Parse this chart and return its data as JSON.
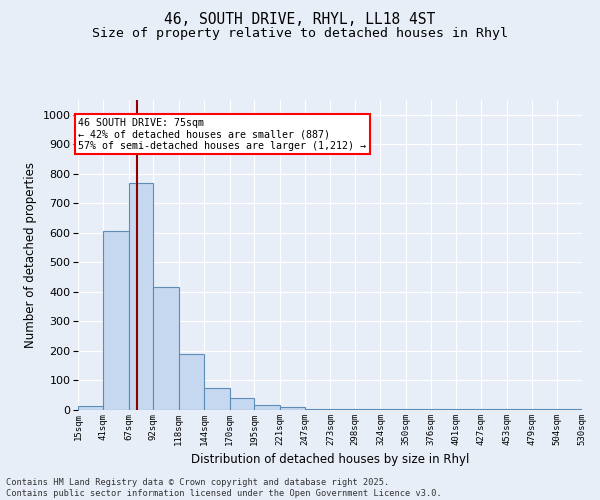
{
  "title_line1": "46, SOUTH DRIVE, RHYL, LL18 4ST",
  "title_line2": "Size of property relative to detached houses in Rhyl",
  "xlabel": "Distribution of detached houses by size in Rhyl",
  "ylabel": "Number of detached properties",
  "bar_values": [
    15,
    605,
    770,
    415,
    190,
    75,
    40,
    18,
    10,
    5,
    5,
    5,
    5,
    5,
    5,
    5,
    5,
    5,
    5,
    5
  ],
  "bin_edges": [
    15,
    41,
    67,
    92,
    118,
    144,
    170,
    195,
    221,
    247,
    273,
    298,
    324,
    350,
    376,
    401,
    427,
    453,
    479,
    504,
    530
  ],
  "bin_labels": [
    "15sqm",
    "41sqm",
    "67sqm",
    "92sqm",
    "118sqm",
    "144sqm",
    "170sqm",
    "195sqm",
    "221sqm",
    "247sqm",
    "273sqm",
    "298sqm",
    "324sqm",
    "350sqm",
    "376sqm",
    "401sqm",
    "427sqm",
    "453sqm",
    "479sqm",
    "504sqm",
    "530sqm"
  ],
  "bar_color": "#C5D8F0",
  "bar_edge_color": "#5B8DB8",
  "property_size": 75,
  "vline_color": "#8B0000",
  "annotation_text_line1": "46 SOUTH DRIVE: 75sqm",
  "annotation_text_line2": "← 42% of detached houses are smaller (887)",
  "annotation_text_line3": "57% of semi-detached houses are larger (1,212) →",
  "annotation_box_color": "white",
  "annotation_box_edge_color": "red",
  "ylim": [
    0,
    1050
  ],
  "yticks": [
    0,
    100,
    200,
    300,
    400,
    500,
    600,
    700,
    800,
    900,
    1000
  ],
  "background_color": "#E8EEF8",
  "footer_text": "Contains HM Land Registry data © Crown copyright and database right 2025.\nContains public sector information licensed under the Open Government Licence v3.0.",
  "title_fontsize": 10.5,
  "subtitle_fontsize": 9.5,
  "grid_color": "#FFFFFF"
}
